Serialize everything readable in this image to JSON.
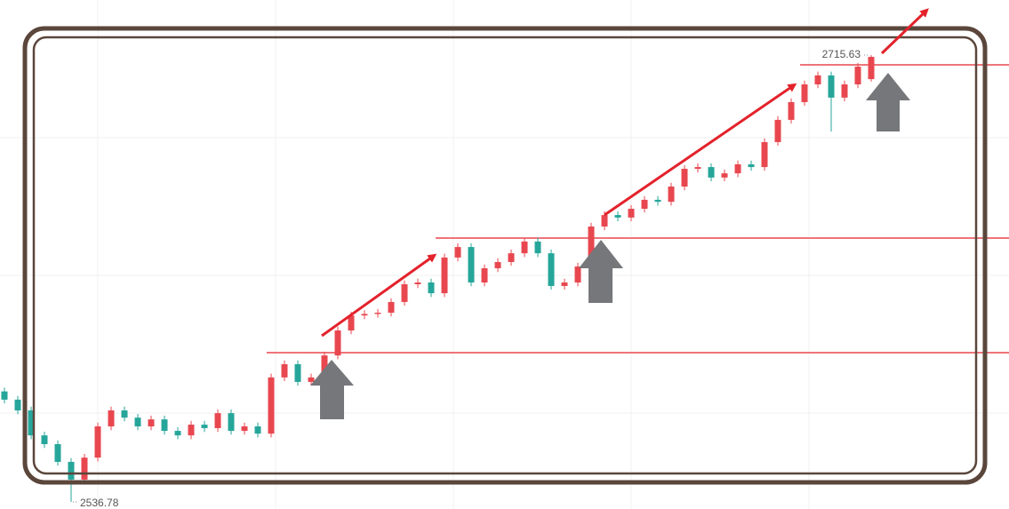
{
  "chart_data": {
    "type": "candlestick",
    "up_color": "#e8474f",
    "down_color": "#26a69a",
    "level_color": "#e8474f",
    "open": [
      2581.0,
      2577.7,
      2573.4,
      2563.4,
      2559.9,
      2552.8,
      2545.7,
      2554.5,
      2567.0,
      2573.4,
      2570.5,
      2567.0,
      2569.8,
      2565.2,
      2563.4,
      2567.7,
      2566.3,
      2572.3,
      2565.2,
      2567.0,
      2564.1,
      2586.6,
      2591.9,
      2584.8,
      2586.6,
      2595.4,
      2605.4,
      2611.4,
      2612.0,
      2612.5,
      2616.8,
      2623.9,
      2624.6,
      2620.3,
      2634.6,
      2638.8,
      2624.6,
      2630.3,
      2632.8,
      2636.3,
      2641.0,
      2636.3,
      2623.2,
      2624.6,
      2631.0,
      2647.0,
      2651.6,
      2650.6,
      2654.1,
      2657.7,
      2656.9,
      2663.0,
      2670.1,
      2670.8,
      2666.6,
      2668.3,
      2671.9,
      2670.8,
      2680.8,
      2689.7,
      2696.8,
      2703.9,
      2707.5,
      2698.6,
      2703.9,
      2706.0
    ],
    "high": [
      2582.5,
      2579.2,
      2574.9,
      2564.9,
      2561.4,
      2554.3,
      2556.0,
      2568.5,
      2574.9,
      2574.9,
      2572.0,
      2571.3,
      2571.3,
      2566.7,
      2569.2,
      2569.2,
      2573.8,
      2573.8,
      2568.5,
      2568.5,
      2588.1,
      2593.4,
      2593.4,
      2588.1,
      2596.9,
      2606.9,
      2612.9,
      2613.5,
      2614.0,
      2618.3,
      2625.4,
      2626.1,
      2626.1,
      2636.1,
      2640.3,
      2640.3,
      2631.8,
      2634.3,
      2637.8,
      2642.5,
      2642.5,
      2637.8,
      2626.1,
      2632.5,
      2648.5,
      2653.1,
      2653.1,
      2655.6,
      2659.2,
      2659.2,
      2664.5,
      2671.6,
      2672.3,
      2672.3,
      2669.8,
      2673.4,
      2673.4,
      2682.3,
      2691.2,
      2698.3,
      2705.4,
      2709.0,
      2709.0,
      2705.4,
      2712.5,
      2715.63
    ],
    "low": [
      2576.2,
      2571.9,
      2561.9,
      2558.4,
      2551.3,
      2536.78,
      2544.2,
      2553.0,
      2565.5,
      2569.0,
      2565.5,
      2565.5,
      2563.7,
      2561.9,
      2561.9,
      2564.8,
      2564.8,
      2563.7,
      2563.7,
      2562.6,
      2562.6,
      2585.1,
      2583.3,
      2583.3,
      2585.1,
      2593.9,
      2603.9,
      2609.9,
      2610.5,
      2611.0,
      2615.3,
      2622.4,
      2618.8,
      2618.8,
      2633.1,
      2623.1,
      2623.1,
      2628.8,
      2631.3,
      2634.8,
      2634.8,
      2621.7,
      2621.7,
      2623.1,
      2629.5,
      2645.5,
      2649.1,
      2649.1,
      2652.6,
      2655.4,
      2655.4,
      2661.5,
      2668.6,
      2665.1,
      2665.1,
      2666.8,
      2669.3,
      2669.3,
      2679.3,
      2688.2,
      2695.3,
      2702.4,
      2685.0,
      2697.1,
      2702.4,
      2705.0
    ],
    "close": [
      2577.7,
      2573.4,
      2563.4,
      2559.9,
      2552.8,
      2545.7,
      2554.5,
      2567.0,
      2573.4,
      2570.5,
      2567.0,
      2569.8,
      2565.2,
      2563.4,
      2567.7,
      2566.3,
      2572.3,
      2565.2,
      2567.0,
      2564.1,
      2586.6,
      2591.9,
      2584.8,
      2586.6,
      2595.4,
      2605.4,
      2611.4,
      2612.0,
      2612.5,
      2616.8,
      2623.9,
      2624.6,
      2620.3,
      2634.6,
      2638.8,
      2624.6,
      2630.3,
      2632.8,
      2636.3,
      2641.0,
      2636.3,
      2623.2,
      2624.6,
      2631.0,
      2647.0,
      2651.6,
      2650.6,
      2654.1,
      2657.7,
      2656.9,
      2663.0,
      2670.1,
      2670.8,
      2666.6,
      2668.3,
      2671.9,
      2670.8,
      2680.8,
      2689.7,
      2696.8,
      2703.9,
      2707.5,
      2698.6,
      2703.9,
      2711.0,
      2714.9
    ],
    "levels": [
      2711.7,
      2642.4,
      2596.5
    ]
  }
}
